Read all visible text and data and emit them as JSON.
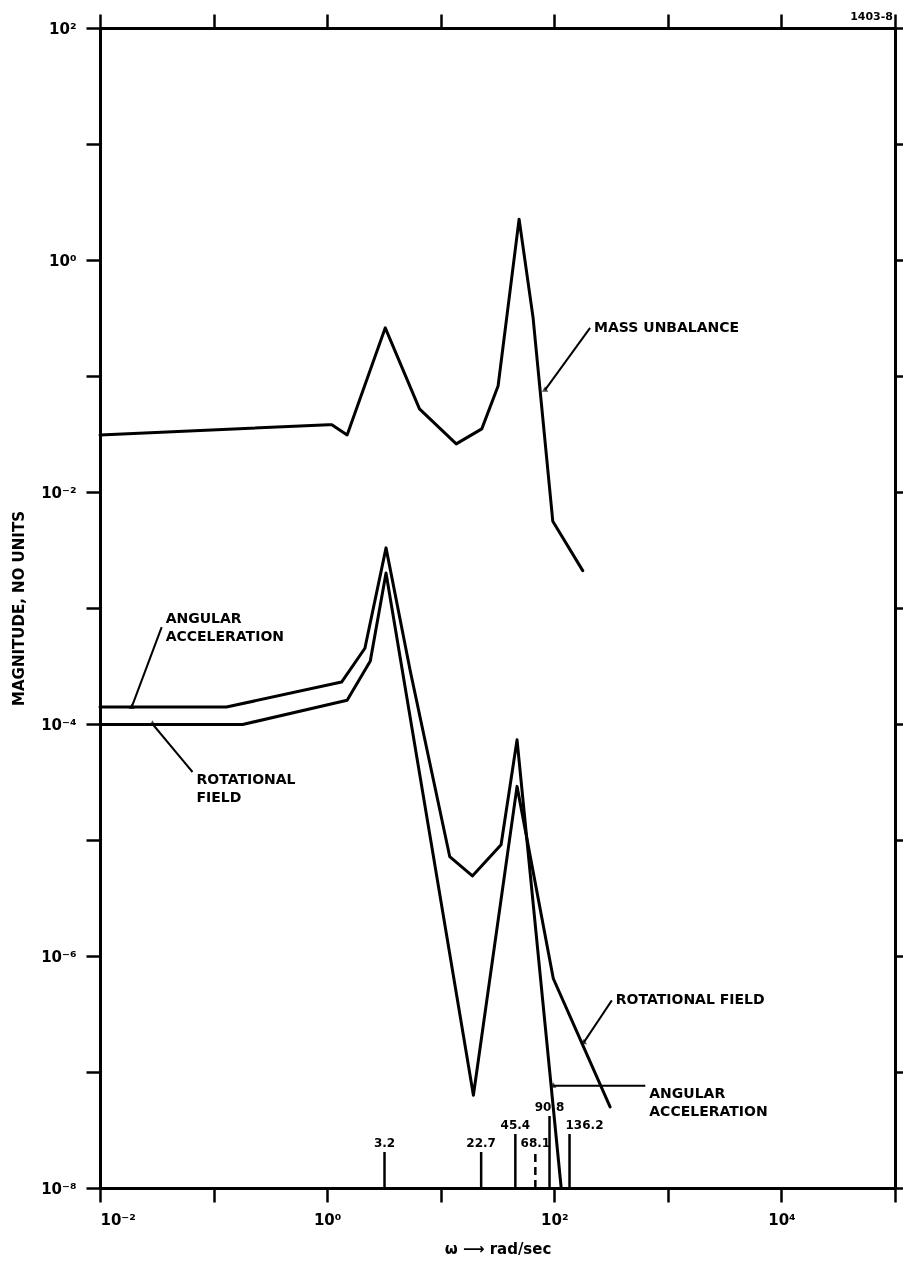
{
  "chart_data": {
    "type": "line",
    "xlabel": "ω ⟶ rad/sec",
    "ylabel": "MAGNITUDE, NO UNITS",
    "log": "xy",
    "grid": false,
    "marker": "none",
    "line_style": "solid",
    "xlim": [
      0.01,
      100000
    ],
    "ylim": [
      1e-08,
      100
    ],
    "xticks": [
      {
        "value": 0.01,
        "label": "10⁻²"
      },
      {
        "value": 0.1,
        "label": null
      },
      {
        "value": 1,
        "label": "10⁰"
      },
      {
        "value": 10,
        "label": null
      },
      {
        "value": 100,
        "label": "10²"
      },
      {
        "value": 1000,
        "label": null
      },
      {
        "value": 10000,
        "label": "10⁴"
      },
      {
        "value": 100000,
        "label": null
      }
    ],
    "yticks": [
      {
        "value": 1e-08,
        "label": "10⁻⁸"
      },
      {
        "value": 1e-07,
        "label": null
      },
      {
        "value": 1e-06,
        "label": "10⁻⁶"
      },
      {
        "value": 1e-05,
        "label": null
      },
      {
        "value": 0.0001,
        "label": "10⁻⁴"
      },
      {
        "value": 0.001,
        "label": null
      },
      {
        "value": 0.01,
        "label": "10⁻²"
      },
      {
        "value": 0.1,
        "label": null
      },
      {
        "value": 1,
        "label": "10⁰"
      },
      {
        "value": 10,
        "label": null
      },
      {
        "value": 100,
        "label": "10²"
      }
    ],
    "series": [
      {
        "color": "#000000",
        "x": [
          0.01,
          1.03,
          1.1,
          1.5,
          3.25,
          6.5,
          13.7,
          23,
          32,
          49,
          65,
          97,
          178
        ],
        "values": [
          0.031,
          0.038,
          0.038,
          0.031,
          0.26,
          0.052,
          0.026,
          0.035,
          0.082,
          2.25,
          0.32,
          0.0056,
          0.0021
        ]
      },
      {
        "color": "#000000",
        "x": [
          0.01,
          0.13,
          1.34,
          2.15,
          3.3,
          5.4,
          12,
          19,
          34,
          47,
          115
        ],
        "values": [
          0.00014,
          0.00014,
          0.00023,
          0.00045,
          0.0033,
          0.000285,
          7.2e-06,
          4.9e-06,
          9.1e-06,
          7.3e-05,
          1e-08
        ]
      },
      {
        "color": "#000000",
        "x": [
          0.01,
          0.18,
          1.5,
          2.4,
          3.3,
          19.4,
          47,
          98,
          310
        ],
        "values": [
          9.9e-05,
          9.9e-05,
          0.00016,
          0.00035,
          0.002,
          6.3e-08,
          2.9e-05,
          6.4e-07,
          5e-08
        ]
      }
    ],
    "ref_lines": [
      {
        "axis": "x",
        "value": 3.2,
        "label": "3.2"
      },
      {
        "axis": "x",
        "value": 22.7,
        "label": "22.7"
      },
      {
        "axis": "x",
        "value": 45.4,
        "label": "45.4"
      },
      {
        "axis": "x",
        "value": 68.1,
        "label": "68.1",
        "line_style": "dashed"
      },
      {
        "axis": "x",
        "value": 90.8,
        "label": "90.8"
      },
      {
        "axis": "x",
        "value": 136.2,
        "label": "136.2"
      }
    ],
    "annotations": [
      {
        "text": "MASS UNBALANCE",
        "x": 83,
        "y": 0.076
      },
      {
        "text": "ANGULAR\nACCELERATION",
        "x": 0.019,
        "y": 0.00014
      },
      {
        "text": "ROTATIONAL\nFIELD",
        "x": 0.029,
        "y": 0.0001
      },
      {
        "text": "ROTATIONAL FIELD",
        "x": 182,
        "y": 1.8e-07
      },
      {
        "text": "ANGULAR\nACCELERATION",
        "x": 98,
        "y": 7.6e-08
      },
      "1403-8"
    ]
  }
}
